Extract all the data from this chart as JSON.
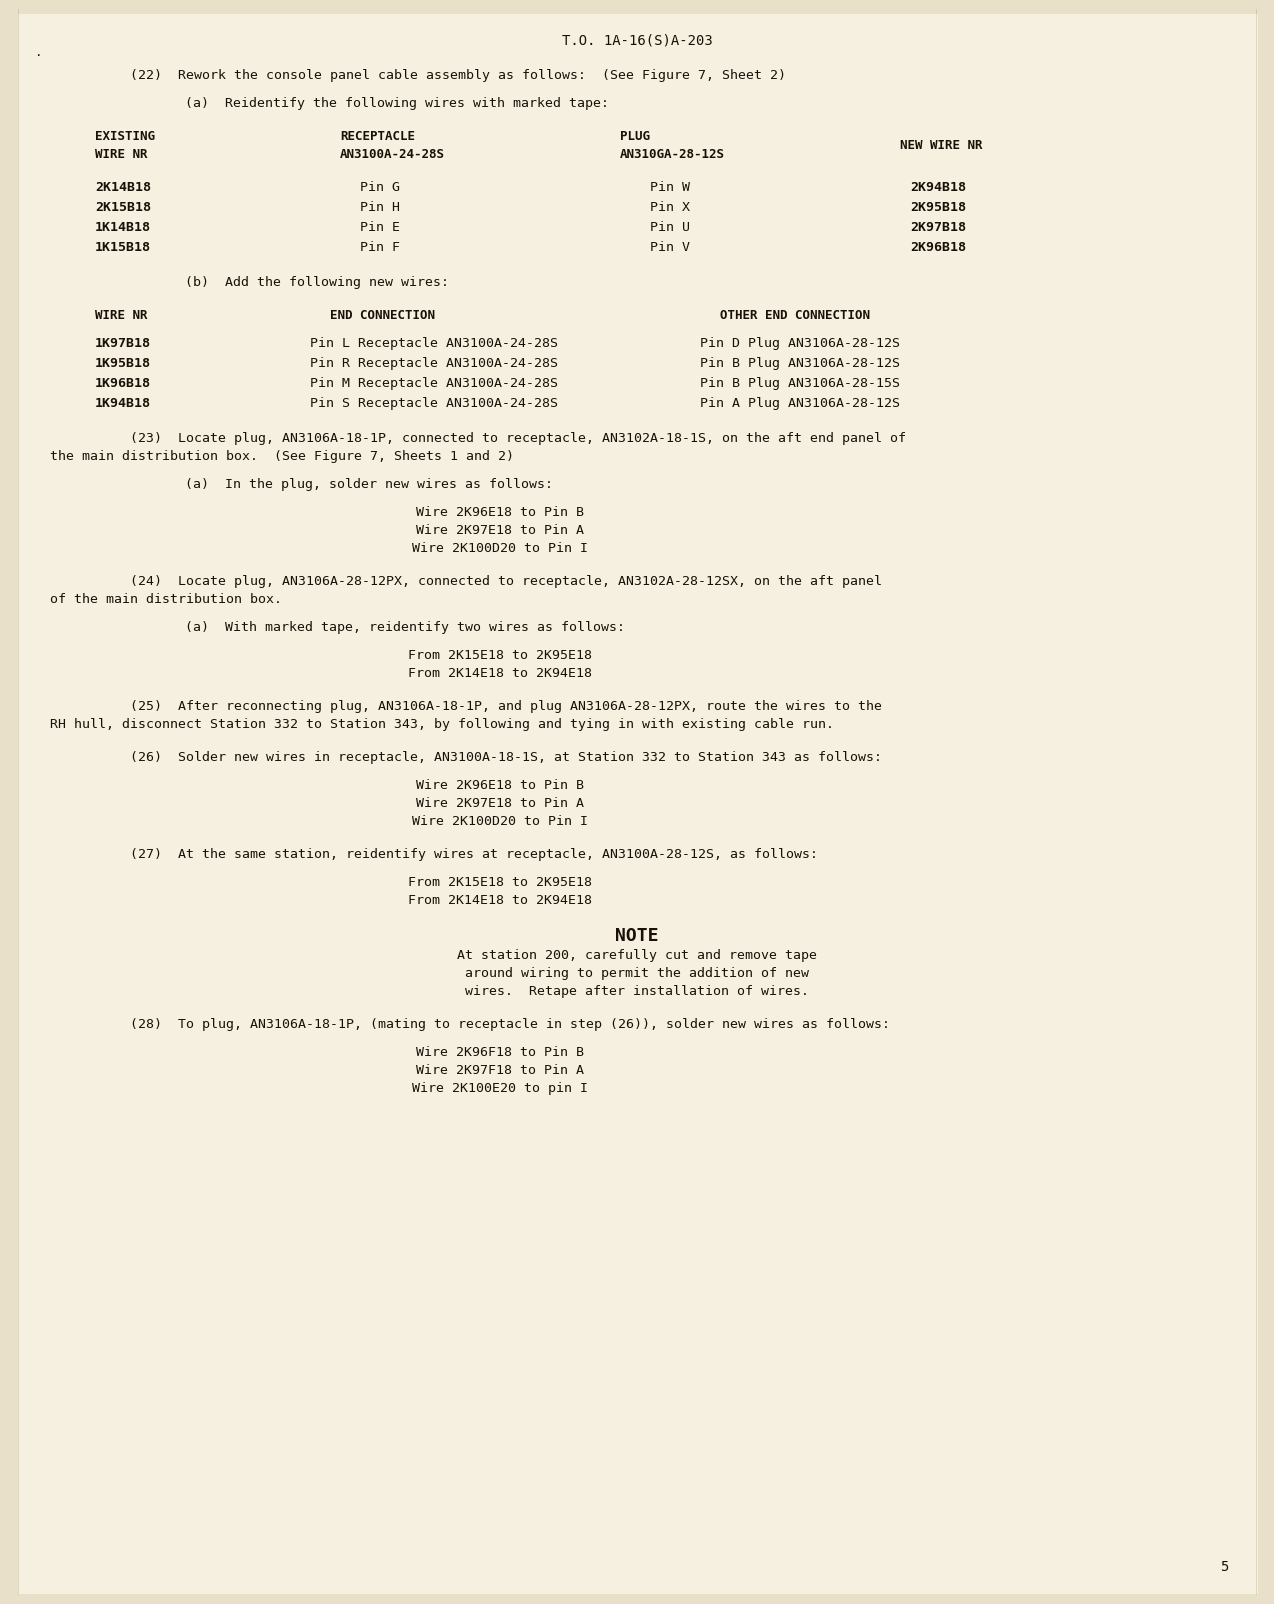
{
  "bg_color": "#f5f0e0",
  "page_bg": "#e8e0c8",
  "text_color": "#1a1008",
  "header": "T.O. 1A-16(S)A-203",
  "page_number": "5",
  "dot_marker": "·",
  "content": [
    {
      "type": "para",
      "indent": 1,
      "text": "(22)  Rework the console panel cable assembly as follows:  (See Figure 7, Sheet 2)"
    },
    {
      "type": "para",
      "indent": 2,
      "text": "(a)  Reidentify the following wires with marked tape:"
    },
    {
      "type": "table1_header",
      "cols": [
        "EXISTING\nWIRE NR",
        "RECEPTACLE\nAN3100A-24-28S",
        "PLUG\nAN310GA-28-12S",
        "NEW WIRE NR"
      ]
    },
    {
      "type": "table1_row",
      "cols": [
        "2K14B18",
        "Pin G",
        "Pin W",
        "2K94B18"
      ]
    },
    {
      "type": "table1_row",
      "cols": [
        "2K15B18",
        "Pin H",
        "Pin X",
        "2K95B18"
      ]
    },
    {
      "type": "table1_row",
      "cols": [
        "1K14B18",
        "Pin E",
        "Pin U",
        "2K97B18"
      ]
    },
    {
      "type": "table1_row",
      "cols": [
        "1K15B18",
        "Pin F",
        "Pin V",
        "2K96B18"
      ]
    },
    {
      "type": "para",
      "indent": 2,
      "text": "(b)  Add the following new wires:"
    },
    {
      "type": "table2_header",
      "cols": [
        "WIRE NR",
        "END CONNECTION",
        "OTHER END CONNECTION"
      ]
    },
    {
      "type": "table2_row",
      "cols": [
        "1K97B18",
        "Pin L Receptacle AN3100A-24-28S",
        "Pin D Plug AN3106A-28-12S"
      ]
    },
    {
      "type": "table2_row",
      "cols": [
        "1K95B18",
        "Pin R Receptacle AN3100A-24-28S",
        "Pin B Plug AN3106A-28-12S"
      ]
    },
    {
      "type": "table2_row",
      "cols": [
        "1K96B18",
        "Pin M Receptacle AN3100A-24-28S",
        "Pin B Plug AN3106A-28-15S"
      ]
    },
    {
      "type": "table2_row",
      "cols": [
        "1K94B18",
        "Pin S Receptacle AN3100A-24-28S",
        "Pin A Plug AN3106A-28-12S"
      ]
    },
    {
      "type": "para_wrap",
      "indent": 1,
      "lines": [
        "(23)  Locate plug, AN3106A-18-1P, connected to receptacle, AN3102A-18-1S, on the aft end panel of",
        "the main distribution box.  (See Figure 7, Sheets 1 and 2)"
      ]
    },
    {
      "type": "para",
      "indent": 2,
      "text": "(a)  In the plug, solder new wires as follows:"
    },
    {
      "type": "centered_lines",
      "lines": [
        "Wire 2K96E18 to Pin B",
        "Wire 2K97E18 to Pin A",
        "Wire 2K100D20 to Pin I"
      ]
    },
    {
      "type": "para_wrap",
      "indent": 1,
      "lines": [
        "(24)  Locate plug, AN3106A-28-12PX, connected to receptacle, AN3102A-28-12SX, on the aft panel",
        "of the main distribution box."
      ]
    },
    {
      "type": "para",
      "indent": 2,
      "text": "(a)  With marked tape, reidentify two wires as follows:"
    },
    {
      "type": "centered_lines",
      "lines": [
        "From 2K15E18 to 2K95E18",
        "From 2K14E18 to 2K94E18"
      ]
    },
    {
      "type": "para_wrap",
      "indent": 1,
      "lines": [
        "(25)  After reconnecting plug, AN3106A-18-1P, and plug AN3106A-28-12PX, route the wires to the",
        "RH hull, disconnect Station 332 to Station 343, by following and tying in with existing cable run."
      ]
    },
    {
      "type": "para_wrap",
      "indent": 1,
      "lines": [
        "(26)  Solder new wires in receptacle, AN3100A-18-1S, at Station 332 to Station 343 as follows:"
      ]
    },
    {
      "type": "centered_lines",
      "lines": [
        "Wire 2K96E18 to Pin B",
        "Wire 2K97E18 to Pin A",
        "Wire 2K100D20 to Pin I"
      ]
    },
    {
      "type": "para_wrap",
      "indent": 1,
      "lines": [
        "(27)  At the same station, reidentify wires at receptacle, AN3100A-28-12S, as follows:"
      ]
    },
    {
      "type": "centered_lines",
      "lines": [
        "From 2K15E18 to 2K95E18",
        "From 2K14E18 to 2K94E18"
      ]
    },
    {
      "type": "note_box",
      "lines": [
        "At station 200, carefully cut and remove tape",
        "around wiring to permit the addition of new",
        "wires.  Retape after installation of wires."
      ]
    },
    {
      "type": "para_wrap",
      "indent": 1,
      "lines": [
        "(28)  To plug, AN3106A-18-1P, (mating to receptacle in step (26)), solder new wires as follows:"
      ]
    },
    {
      "type": "centered_lines",
      "lines": [
        "Wire 2K96F18 to Pin B",
        "Wire 2K97F18 to Pin A",
        "Wire 2K100E20 to pin I"
      ]
    }
  ]
}
